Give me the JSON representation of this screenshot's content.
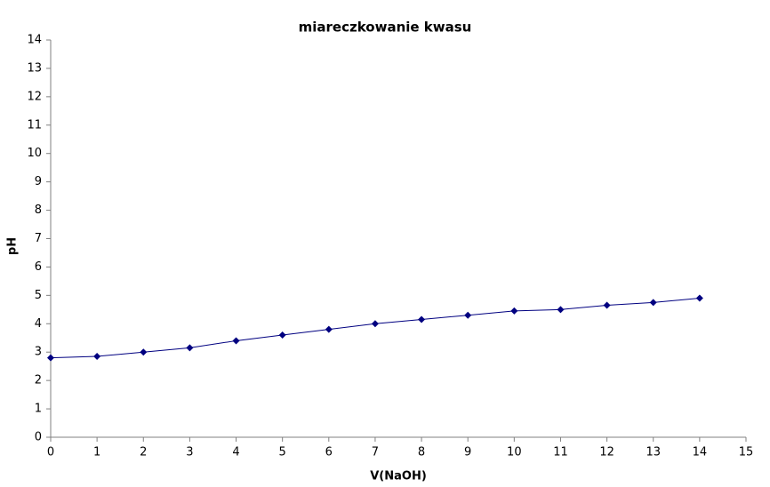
{
  "chart_data": {
    "type": "line",
    "title": "miareczkowanie kwasu",
    "x_label": "V(NaOH)",
    "y_label": "pH",
    "x": [
      0,
      1,
      2,
      3,
      4,
      5,
      6,
      7,
      8,
      9,
      10,
      11,
      12,
      13,
      14
    ],
    "series": [
      {
        "color": "#000080",
        "values": [
          2.8,
          2.85,
          3.0,
          3.15,
          3.4,
          3.6,
          3.8,
          4.0,
          4.15,
          4.3,
          4.45,
          4.5,
          4.65,
          4.75,
          4.9
        ]
      }
    ],
    "xlim": [
      0,
      15
    ],
    "xticks": [
      0,
      1,
      2,
      3,
      4,
      5,
      6,
      7,
      8,
      9,
      10,
      11,
      12,
      13,
      14,
      15
    ],
    "ylim": [
      0,
      14
    ],
    "yticks": [
      0,
      1,
      2,
      3,
      4,
      5,
      6,
      7,
      8,
      9,
      10,
      11,
      12,
      13,
      14
    ],
    "grid": false
  }
}
